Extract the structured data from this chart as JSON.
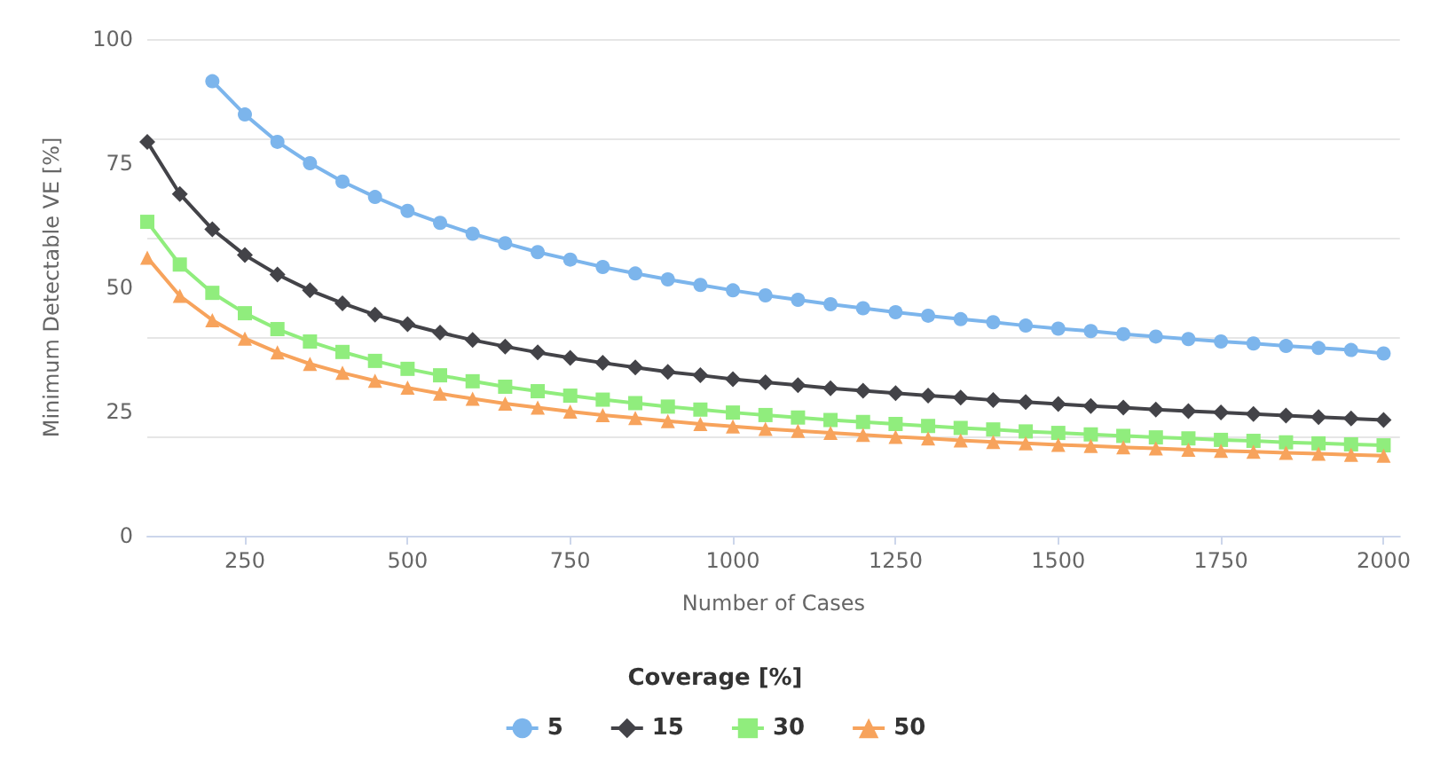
{
  "chart_data": {
    "type": "line",
    "xlabel": "Number of Cases",
    "ylabel": "Minimum Detectable VE [%]",
    "legend_title": "Coverage [%]",
    "legend": "bottom",
    "grid": "y",
    "x": [
      100,
      150,
      200,
      250,
      300,
      350,
      400,
      450,
      500,
      550,
      600,
      650,
      700,
      750,
      800,
      850,
      900,
      950,
      1000,
      1050,
      1100,
      1150,
      1200,
      1250,
      1300,
      1350,
      1400,
      1450,
      1500,
      1550,
      1600,
      1650,
      1700,
      1750,
      1800,
      1850,
      1900,
      1950,
      2000
    ],
    "xlim": [
      100,
      2025
    ],
    "xticks": [
      250,
      500,
      750,
      1000,
      1250,
      1500,
      1750,
      2000
    ],
    "ylim": [
      0,
      100
    ],
    "yticks": [
      0,
      25,
      50,
      75,
      100
    ],
    "series": [
      {
        "name": "5",
        "color": "#7cb5ec",
        "marker": "circle",
        "values": [
          null,
          null,
          91.5,
          84.8,
          79.3,
          75,
          71.3,
          68.2,
          65.4,
          63,
          60.8,
          58.9,
          57.1,
          55.6,
          54.1,
          52.8,
          51.6,
          50.5,
          49.4,
          48.4,
          47.5,
          46.6,
          45.8,
          45,
          44.3,
          43.6,
          43,
          42.3,
          41.7,
          41.2,
          40.6,
          40.1,
          39.6,
          39.1,
          38.7,
          38.2,
          37.8,
          37.4,
          36.7
        ]
      },
      {
        "name": "15",
        "color": "#434348",
        "marker": "diamond",
        "values": [
          79.3,
          68.8,
          61.7,
          56.5,
          52.6,
          49.4,
          46.8,
          44.5,
          42.6,
          40.9,
          39.4,
          38.1,
          36.9,
          35.8,
          34.8,
          33.9,
          33,
          32.3,
          31.5,
          30.9,
          30.3,
          29.7,
          29.2,
          28.7,
          28.2,
          27.8,
          27.3,
          26.9,
          26.5,
          26.1,
          25.8,
          25.4,
          25.1,
          24.8,
          24.5,
          24.2,
          23.9,
          23.6,
          23.3
        ]
      },
      {
        "name": "30",
        "color": "#90ed7d",
        "marker": "square",
        "values": [
          63.2,
          54.6,
          48.9,
          44.8,
          41.6,
          39.1,
          37,
          35.2,
          33.6,
          32.3,
          31.1,
          30,
          29.1,
          28.2,
          27.4,
          26.7,
          26,
          25.4,
          24.8,
          24.3,
          23.8,
          23.3,
          22.9,
          22.5,
          22.1,
          21.7,
          21.4,
          21,
          20.7,
          20.4,
          20.1,
          19.8,
          19.6,
          19.3,
          19.1,
          18.8,
          18.6,
          18.4,
          18.2
        ]
      },
      {
        "name": "50",
        "color": "#f7a35c",
        "marker": "triangle",
        "values": [
          56,
          48.3,
          43.4,
          39.7,
          36.9,
          34.6,
          32.8,
          31.2,
          29.8,
          28.6,
          27.6,
          26.6,
          25.8,
          25,
          24.3,
          23.7,
          23.1,
          22.5,
          22,
          21.5,
          21.1,
          20.7,
          20.3,
          19.9,
          19.6,
          19.2,
          18.9,
          18.6,
          18.3,
          18.1,
          17.8,
          17.6,
          17.3,
          17.1,
          16.9,
          16.7,
          16.5,
          16.3,
          16.1
        ]
      }
    ]
  }
}
